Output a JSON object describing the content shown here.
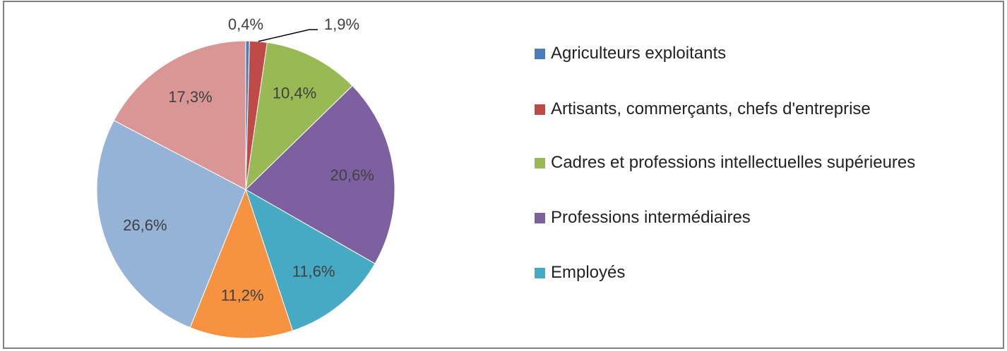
{
  "chart_data": {
    "type": "pie",
    "categories": [
      "Agriculteurs exploitants",
      "Artisants, commerçants, chefs d'entreprise",
      "Cadres et professions intellectuelles supérieures",
      "Professions intermédiaires",
      "Employés",
      null,
      null,
      null
    ],
    "values": [
      0.4,
      1.9,
      10.4,
      20.6,
      11.6,
      11.2,
      26.6,
      17.3
    ],
    "value_labels": [
      "0,4%",
      "1,9%",
      "10,4%",
      "20,6%",
      "11,6%",
      "11,2%",
      "26,6%",
      "17,3%"
    ],
    "colors": [
      "#4a7ebb",
      "#be4b48",
      "#98b954",
      "#7d60a0",
      "#46aac5",
      "#f69240",
      "#95b3d7",
      "#d99694"
    ],
    "legend": "right"
  }
}
